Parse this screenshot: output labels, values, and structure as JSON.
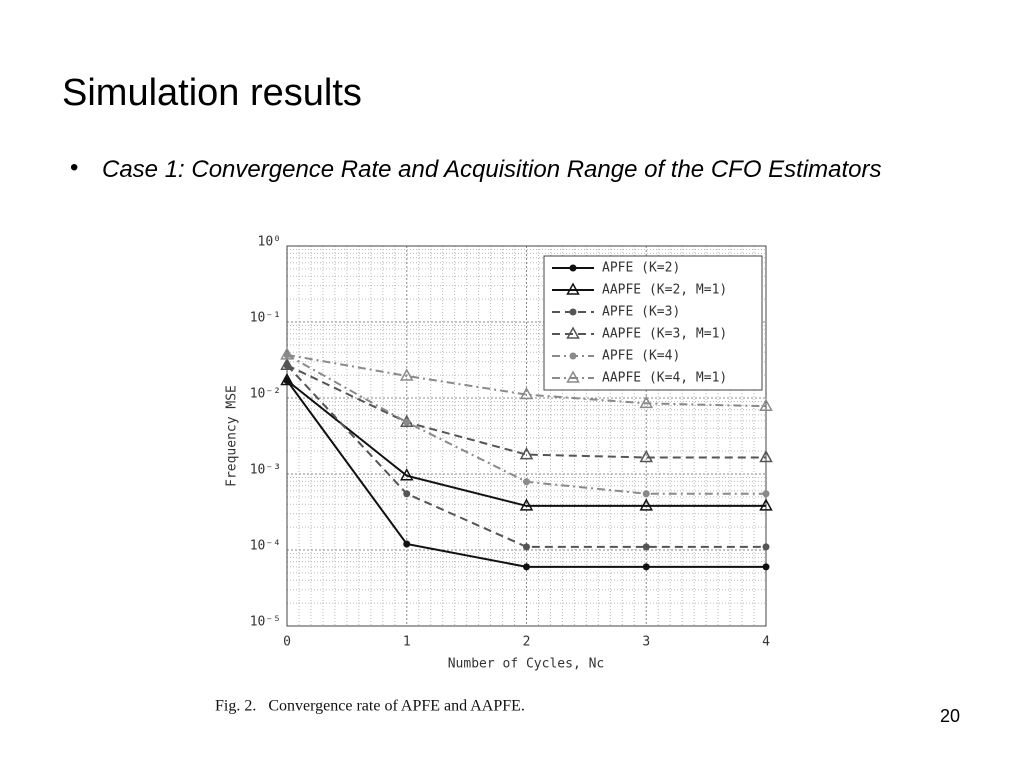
{
  "title": "Simulation results",
  "bullet": "Case 1: Convergence Rate and Acquisition Range of the CFO Estimators",
  "caption": "Fig. 2.   Convergence rate of APFE and AAPFE.",
  "page_number": "20",
  "chart_data": {
    "type": "line",
    "xlabel": "Number of Cycles, Nc",
    "ylabel": "Frequency MSE",
    "x": [
      0,
      1,
      2,
      3,
      4
    ],
    "xlim": [
      0,
      4
    ],
    "xticks": [
      0,
      1,
      2,
      3,
      4
    ],
    "ylim": [
      1e-05,
      1
    ],
    "log_y": true,
    "yticks": [
      {
        "value": 1e-05,
        "label": "10⁻⁵"
      },
      {
        "value": 0.0001,
        "label": "10⁻⁴"
      },
      {
        "value": 0.001,
        "label": "10⁻³"
      },
      {
        "value": 0.01,
        "label": "10⁻²"
      },
      {
        "value": 0.1,
        "label": "10⁻¹"
      },
      {
        "value": 1,
        "label": "10⁰"
      }
    ],
    "grid": true,
    "legend": "upper right",
    "series": [
      {
        "name": "APFE (K=2)",
        "color": "#111111",
        "dash": "solid",
        "marker": "dot",
        "values": [
          0.017,
          0.00012,
          6e-05,
          6e-05,
          6e-05
        ]
      },
      {
        "name": "AAPFE (K=2, M=1)",
        "color": "#111111",
        "dash": "solid",
        "marker": "triangle",
        "values": [
          0.017,
          0.00095,
          0.00038,
          0.00038,
          0.00038
        ]
      },
      {
        "name": "APFE (K=3)",
        "color": "#555555",
        "dash": "dashed",
        "marker": "dot",
        "values": [
          0.027,
          0.00055,
          0.00011,
          0.00011,
          0.00011
        ]
      },
      {
        "name": "AAPFE (K=3, M=1)",
        "color": "#555555",
        "dash": "dashed",
        "marker": "triangle",
        "values": [
          0.027,
          0.0048,
          0.0018,
          0.00165,
          0.00165
        ]
      },
      {
        "name": "APFE (K=4)",
        "color": "#8a8a8a",
        "dash": "dashdot",
        "marker": "dot",
        "values": [
          0.037,
          0.0048,
          0.00079,
          0.00055,
          0.00055
        ]
      },
      {
        "name": "AAPFE (K=4, M=1)",
        "color": "#8a8a8a",
        "dash": "dashdot",
        "marker": "triangle",
        "values": [
          0.037,
          0.0195,
          0.0111,
          0.0085,
          0.0078
        ]
      }
    ]
  }
}
